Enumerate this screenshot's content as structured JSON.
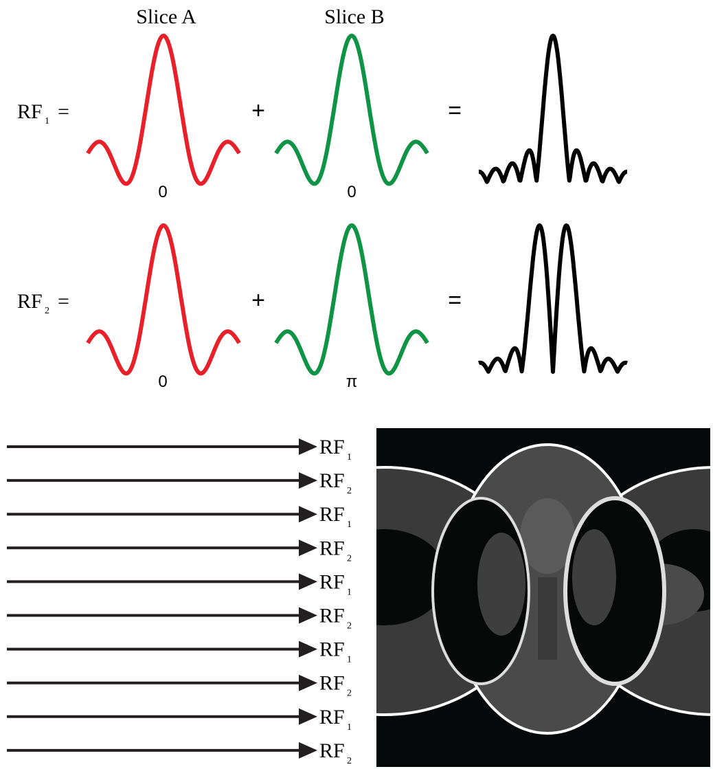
{
  "header": {
    "slice_a": "Slice A",
    "slice_b": "Slice  B"
  },
  "rows": [
    {
      "label": "RF",
      "subscript": "1",
      "equals": "=",
      "plus": "+",
      "phase_a": "0",
      "phase_b": "0",
      "result_equals": "="
    },
    {
      "label": "RF",
      "subscript": "2",
      "equals": "=",
      "plus": "+",
      "phase_a": "0",
      "phase_b": "π",
      "result_equals": "="
    }
  ],
  "arrows": [
    {
      "label": "RF",
      "subscript": "1"
    },
    {
      "label": "RF",
      "subscript": "2"
    },
    {
      "label": "RF",
      "subscript": "1"
    },
    {
      "label": "RF",
      "subscript": "2"
    },
    {
      "label": "RF",
      "subscript": "1"
    },
    {
      "label": "RF",
      "subscript": "2"
    },
    {
      "label": "RF",
      "subscript": "1"
    },
    {
      "label": "RF",
      "subscript": "2"
    },
    {
      "label": "RF",
      "subscript": "1"
    },
    {
      "label": "RF",
      "subscript": "2"
    }
  ]
}
